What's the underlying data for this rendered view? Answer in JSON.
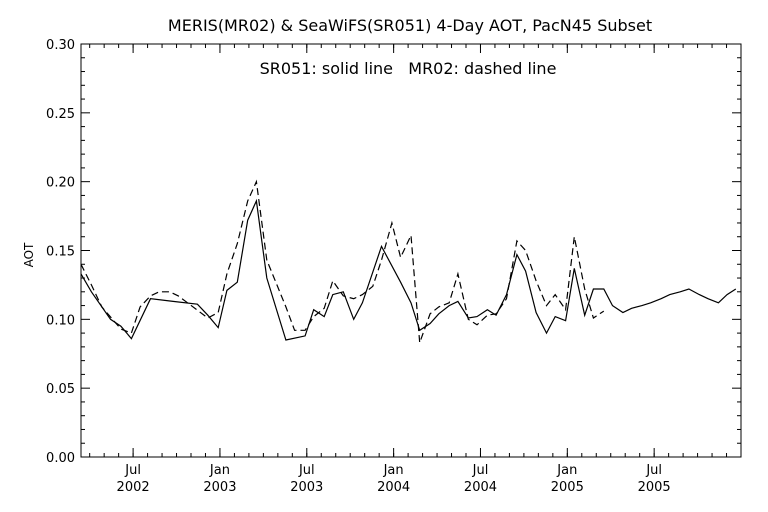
{
  "chart_data": {
    "type": "line",
    "title": "MERIS(MR02) & SeaWiFS(SR051) 4-Day AOT, PacN45 Subset",
    "subtitle": "SR051: solid line   MR02: dashed line",
    "xlabel": "",
    "ylabel": "AOT",
    "xlim": [
      2002.2,
      2006.0
    ],
    "ylim": [
      0.0,
      0.3
    ],
    "grid": false,
    "legend": "none",
    "y_ticks": [
      "0.00",
      "0.05",
      "0.10",
      "0.15",
      "0.20",
      "0.25",
      "0.30"
    ],
    "x_ticks": [
      {
        "x": 2002.5,
        "month": "Jul",
        "year": "2002"
      },
      {
        "x": 2003.0,
        "month": "Jan",
        "year": "2003"
      },
      {
        "x": 2003.5,
        "month": "Jul",
        "year": "2003"
      },
      {
        "x": 2004.0,
        "month": "Jan",
        "year": "2004"
      },
      {
        "x": 2004.5,
        "month": "Jul",
        "year": "2004"
      },
      {
        "x": 2005.0,
        "month": "Jan",
        "year": "2005"
      },
      {
        "x": 2005.5,
        "month": "Jul",
        "year": "2005"
      }
    ],
    "series": [
      {
        "name": "SR051",
        "style": "solid",
        "color": "#000000",
        "x": [
          2002.2,
          2002.26,
          2002.37,
          2002.43,
          2002.49,
          2002.6,
          2002.73,
          2002.87,
          2002.93,
          2002.99,
          2003.04,
          2003.1,
          2003.16,
          2003.21,
          2003.27,
          2003.38,
          2003.49,
          2003.54,
          2003.6,
          2003.65,
          2003.71,
          2003.77,
          2003.82,
          2003.93,
          2004.04,
          2004.1,
          2004.15,
          2004.21,
          2004.26,
          2004.32,
          2004.37,
          2004.43,
          2004.48,
          2004.54,
          2004.59,
          2004.65,
          2004.71,
          2004.76,
          2004.82,
          2004.88,
          2004.93,
          2004.99,
          2005.04,
          2005.1,
          2005.15,
          2005.21,
          2005.26,
          2005.32,
          2005.37,
          2005.43,
          2005.48,
          2005.54,
          2005.59,
          2005.65,
          2005.7,
          2005.76,
          2005.81,
          2005.87,
          2005.92,
          2005.97
        ],
        "values": [
          0.133,
          0.12,
          0.1,
          0.095,
          0.086,
          0.115,
          0.113,
          0.111,
          0.103,
          0.094,
          0.121,
          0.127,
          0.172,
          0.186,
          0.13,
          0.085,
          0.088,
          0.107,
          0.102,
          0.118,
          0.12,
          0.1,
          0.112,
          0.153,
          0.127,
          0.112,
          0.092,
          0.097,
          0.104,
          0.11,
          0.113,
          0.101,
          0.102,
          0.107,
          0.103,
          0.118,
          0.147,
          0.135,
          0.105,
          0.09,
          0.102,
          0.099,
          0.137,
          0.103,
          0.122,
          0.122,
          0.11,
          0.105,
          0.108,
          0.11,
          0.112,
          0.115,
          0.118,
          0.12,
          0.122,
          0.118,
          0.115,
          0.112,
          0.118,
          0.122
        ]
      },
      {
        "name": "MR02",
        "style": "dashed",
        "color": "#000000",
        "x": [
          2002.2,
          2002.26,
          2002.32,
          2002.43,
          2002.49,
          2002.54,
          2002.6,
          2002.65,
          2002.71,
          2002.76,
          2002.93,
          2002.99,
          2003.04,
          2003.1,
          2003.16,
          2003.21,
          2003.27,
          2003.38,
          2003.43,
          2003.49,
          2003.54,
          2003.6,
          2003.65,
          2003.71,
          2003.77,
          2003.82,
          2003.88,
          2003.93,
          2003.99,
          2004.04,
          2004.1,
          2004.15,
          2004.21,
          2004.26,
          2004.32,
          2004.37,
          2004.43,
          2004.48,
          2004.54,
          2004.59,
          2004.65,
          2004.71,
          2004.76,
          2004.82,
          2004.88,
          2004.93,
          2004.99,
          2005.04,
          2005.1,
          2005.15,
          2005.21
        ],
        "values": [
          0.14,
          0.125,
          0.109,
          0.093,
          0.09,
          0.109,
          0.117,
          0.12,
          0.12,
          0.117,
          0.101,
          0.105,
          0.133,
          0.155,
          0.186,
          0.2,
          0.143,
          0.109,
          0.092,
          0.092,
          0.102,
          0.108,
          0.128,
          0.117,
          0.115,
          0.118,
          0.124,
          0.143,
          0.17,
          0.145,
          0.161,
          0.083,
          0.104,
          0.109,
          0.112,
          0.133,
          0.1,
          0.096,
          0.103,
          0.104,
          0.115,
          0.157,
          0.15,
          0.128,
          0.11,
          0.118,
          0.107,
          0.16,
          0.122,
          0.101,
          0.106
        ]
      }
    ]
  }
}
